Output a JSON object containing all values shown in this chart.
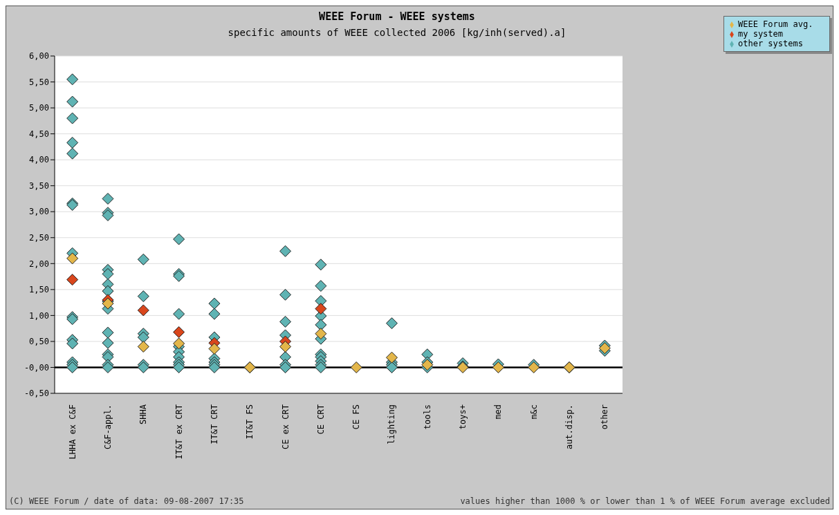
{
  "chart_data": {
    "type": "scatter",
    "title": "WEEE Forum - WEEE systems",
    "subtitle": "specific amounts of WEEE collected 2006 [kg/inh(served).a]",
    "categories": [
      "LHHA ex C&F",
      "C&F-appl.",
      "SHHA",
      "IT&T ex CRT",
      "IT&T CRT",
      "IT&T FS",
      "CE ex CRT",
      "CE CRT",
      "CE FS",
      "lighting",
      "tools",
      "toys+",
      "med",
      "m&c",
      "aut.disp.",
      "other"
    ],
    "series": [
      {
        "name": "other systems",
        "color": "#5fb3b3",
        "x": [
          "LHHA ex C&F",
          "LHHA ex C&F",
          "LHHA ex C&F",
          "LHHA ex C&F",
          "LHHA ex C&F",
          "LHHA ex C&F",
          "LHHA ex C&F",
          "LHHA ex C&F",
          "LHHA ex C&F",
          "LHHA ex C&F",
          "LHHA ex C&F",
          "LHHA ex C&F",
          "LHHA ex C&F",
          "LHHA ex C&F",
          "LHHA ex C&F",
          "C&F-appl.",
          "C&F-appl.",
          "C&F-appl.",
          "C&F-appl.",
          "C&F-appl.",
          "C&F-appl.",
          "C&F-appl.",
          "C&F-appl.",
          "C&F-appl.",
          "C&F-appl.",
          "C&F-appl.",
          "C&F-appl.",
          "C&F-appl.",
          "C&F-appl.",
          "C&F-appl.",
          "SHHA",
          "SHHA",
          "SHHA",
          "SHHA",
          "SHHA",
          "SHHA",
          "IT&T ex CRT",
          "IT&T ex CRT",
          "IT&T ex CRT",
          "IT&T ex CRT",
          "IT&T ex CRT",
          "IT&T ex CRT",
          "IT&T ex CRT",
          "IT&T ex CRT",
          "IT&T ex CRT",
          "IT&T ex CRT",
          "IT&T CRT",
          "IT&T CRT",
          "IT&T CRT",
          "IT&T CRT",
          "IT&T CRT",
          "IT&T CRT",
          "IT&T CRT",
          "IT&T FS",
          "CE ex CRT",
          "CE ex CRT",
          "CE ex CRT",
          "CE ex CRT",
          "CE ex CRT",
          "CE ex CRT",
          "CE ex CRT",
          "CE CRT",
          "CE CRT",
          "CE CRT",
          "CE CRT",
          "CE CRT",
          "CE CRT",
          "CE CRT",
          "CE CRT",
          "CE CRT",
          "CE CRT",
          "CE CRT",
          "lighting",
          "lighting",
          "lighting",
          "lighting",
          "tools",
          "tools",
          "tools",
          "toys+",
          "toys+",
          "med",
          "m&c",
          "aut.disp.",
          "other",
          "other"
        ],
        "values": [
          5.55,
          5.12,
          4.8,
          4.33,
          4.12,
          3.16,
          3.13,
          2.2,
          0.97,
          0.93,
          0.53,
          0.46,
          0.1,
          0.05,
          0.0,
          3.25,
          2.98,
          2.93,
          1.88,
          1.8,
          1.6,
          1.47,
          1.27,
          1.13,
          0.67,
          0.47,
          0.25,
          0.2,
          0.05,
          0.0,
          2.08,
          1.37,
          0.65,
          0.58,
          0.05,
          0.0,
          2.47,
          1.8,
          1.76,
          1.03,
          0.4,
          0.3,
          0.2,
          0.1,
          0.05,
          0.0,
          1.23,
          1.03,
          0.58,
          0.17,
          0.1,
          0.05,
          0.0,
          0.0,
          2.24,
          1.4,
          0.88,
          0.62,
          0.2,
          0.05,
          0.0,
          1.98,
          1.57,
          1.28,
          0.99,
          0.82,
          0.55,
          0.25,
          0.2,
          0.12,
          0.05,
          0.0,
          0.85,
          0.1,
          0.05,
          0.0,
          0.25,
          0.1,
          0.0,
          0.08,
          0.02,
          0.06,
          0.05,
          0.0,
          0.42,
          0.32
        ]
      },
      {
        "name": "my system",
        "color": "#d9461c",
        "x": [
          "LHHA ex C&F",
          "C&F-appl.",
          "SHHA",
          "IT&T ex CRT",
          "IT&T CRT",
          "CE ex CRT",
          "CE CRT"
        ],
        "values": [
          1.69,
          1.3,
          1.1,
          0.68,
          0.47,
          0.5,
          1.13
        ]
      },
      {
        "name": "WEEE Forum avg.",
        "color": "#e3b64a",
        "x": [
          "LHHA ex C&F",
          "C&F-appl.",
          "SHHA",
          "IT&T ex CRT",
          "IT&T CRT",
          "IT&T FS",
          "CE ex CRT",
          "CE CRT",
          "CE FS",
          "lighting",
          "tools",
          "toys+",
          "med",
          "m&c",
          "aut.disp.",
          "other"
        ],
        "values": [
          2.1,
          1.23,
          0.4,
          0.46,
          0.36,
          0.0,
          0.4,
          0.65,
          0.0,
          0.19,
          0.05,
          0.0,
          0.0,
          0.0,
          0.0,
          0.37
        ]
      }
    ],
    "ylim": [
      -0.5,
      6.0
    ],
    "yticks": [
      {
        "value": -0.5,
        "label": "-0,50"
      },
      {
        "value": 0,
        "label": "-0,00"
      },
      {
        "value": 0.5,
        "label": "0,50"
      },
      {
        "value": 1.0,
        "label": "1,00"
      },
      {
        "value": 1.5,
        "label": "1,50"
      },
      {
        "value": 2.0,
        "label": "2,00"
      },
      {
        "value": 2.5,
        "label": "2,50"
      },
      {
        "value": 3.0,
        "label": "3,00"
      },
      {
        "value": 3.5,
        "label": "3,50"
      },
      {
        "value": 4.0,
        "label": "4,00"
      },
      {
        "value": 4.5,
        "label": "4,50"
      },
      {
        "value": 5.0,
        "label": "5,00"
      },
      {
        "value": 5.5,
        "label": "5,50"
      },
      {
        "value": 6.0,
        "label": "6,00"
      }
    ],
    "ref_lines": [
      {
        "axis": "y",
        "value": 0,
        "color": "#000000"
      }
    ],
    "grid": "y",
    "legend": "top right",
    "marker": "diamond",
    "annotations": [
      "(C) WEEE Forum / date of data: 09-08-2007 17:35",
      "values higher than 1000 % or lower than 1 % of WEEE Forum average excluded"
    ]
  }
}
